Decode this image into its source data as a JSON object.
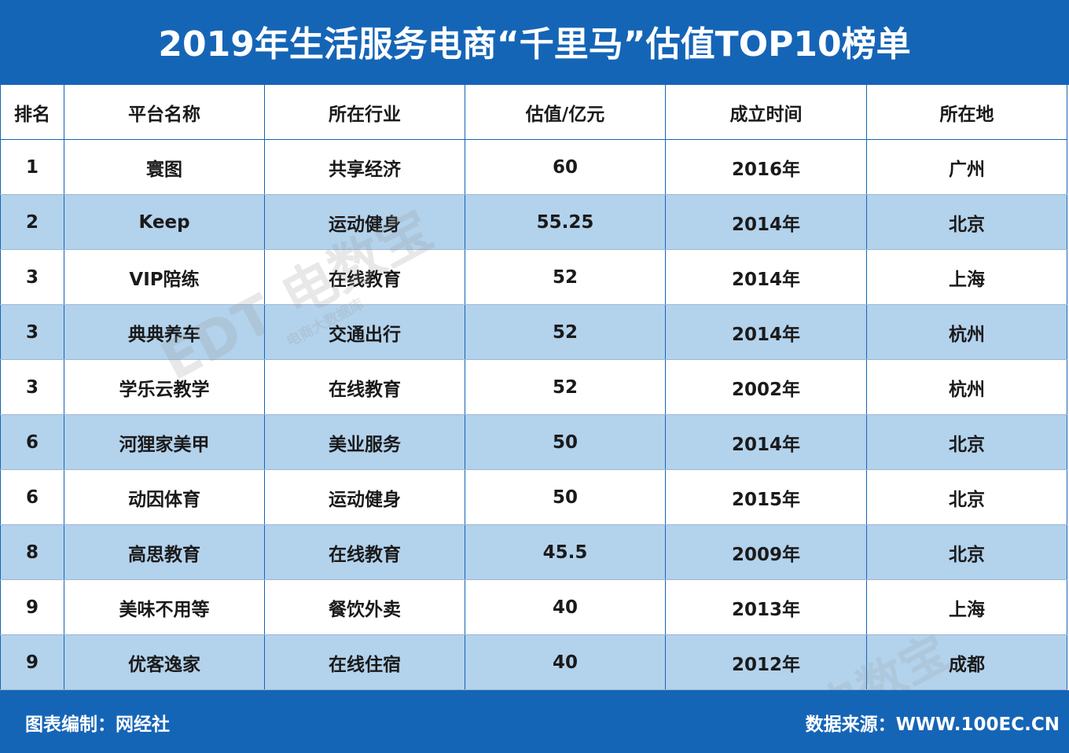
{
  "header": {
    "title": "2019年生活服务电商“千里马”估值TOP10榜单"
  },
  "table": {
    "columns": [
      "排名",
      "平台名称",
      "所在行业",
      "估值/亿元",
      "成立时间",
      "所在地"
    ],
    "rows": [
      [
        "1",
        "寰图",
        "共享经济",
        "60",
        "2016年",
        "广州"
      ],
      [
        "2",
        "Keep",
        "运动健身",
        "55.25",
        "2014年",
        "北京"
      ],
      [
        "3",
        "VIP陪练",
        "在线教育",
        "52",
        "2014年",
        "上海"
      ],
      [
        "3",
        "典典养车",
        "交通出行",
        "52",
        "2014年",
        "杭州"
      ],
      [
        "3",
        "学乐云教学",
        "在线教育",
        "52",
        "2002年",
        "杭州"
      ],
      [
        "6",
        "河狸家美甲",
        "美业服务",
        "50",
        "2014年",
        "北京"
      ],
      [
        "6",
        "动因体育",
        "运动健身",
        "50",
        "2015年",
        "北京"
      ],
      [
        "8",
        "高思教育",
        "在线教育",
        "45.5",
        "2009年",
        "北京"
      ],
      [
        "9",
        "美味不用等",
        "餐饮外卖",
        "40",
        "2013年",
        "上海"
      ],
      [
        "9",
        "优客逸家",
        "在线住宿",
        "40",
        "2012年",
        "成都"
      ]
    ]
  },
  "footer": {
    "left": "图表编制：网经社",
    "right": "数据来源：WWW.100EC.CN"
  },
  "watermark": {
    "text": "电数宝",
    "sub": "电商大数据库",
    "logo": "EDT"
  },
  "colors": {
    "primary": "#1565b7",
    "row_alt": "#b3d2ec"
  }
}
